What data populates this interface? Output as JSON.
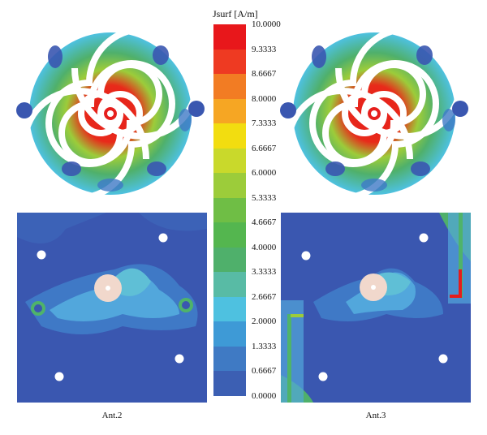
{
  "legend": {
    "title": "Jsurf [A/m]",
    "labels": [
      "10.0000",
      "9.3333",
      "8.6667",
      "8.0000",
      "7.3333",
      "6.6667",
      "6.0000",
      "5.3333",
      "4.6667",
      "4.0000",
      "3.3333",
      "2.6667",
      "2.0000",
      "1.3333",
      "0.6667",
      "0.0000"
    ],
    "colors": [
      "#e8171b",
      "#ee3a22",
      "#f27c23",
      "#f6a623",
      "#f2dd10",
      "#c9d92b",
      "#9ccc3a",
      "#6fbe45",
      "#54b64f",
      "#4fb06b",
      "#58bba5",
      "#4ec1e0",
      "#3e9ad6",
      "#3f7ac4",
      "#3c5fb3"
    ]
  },
  "panels": {
    "left_caption": "Ant.2",
    "right_caption": "Ant.3"
  },
  "colors": {
    "background_blue": "#3a57b0",
    "mid_blue": "#3f79c6",
    "light_blue": "#52a7dc",
    "green": "#4fb36a",
    "red": "#e51c1c",
    "white": "#ffffff",
    "feed_disc": "#f1d8cc"
  }
}
